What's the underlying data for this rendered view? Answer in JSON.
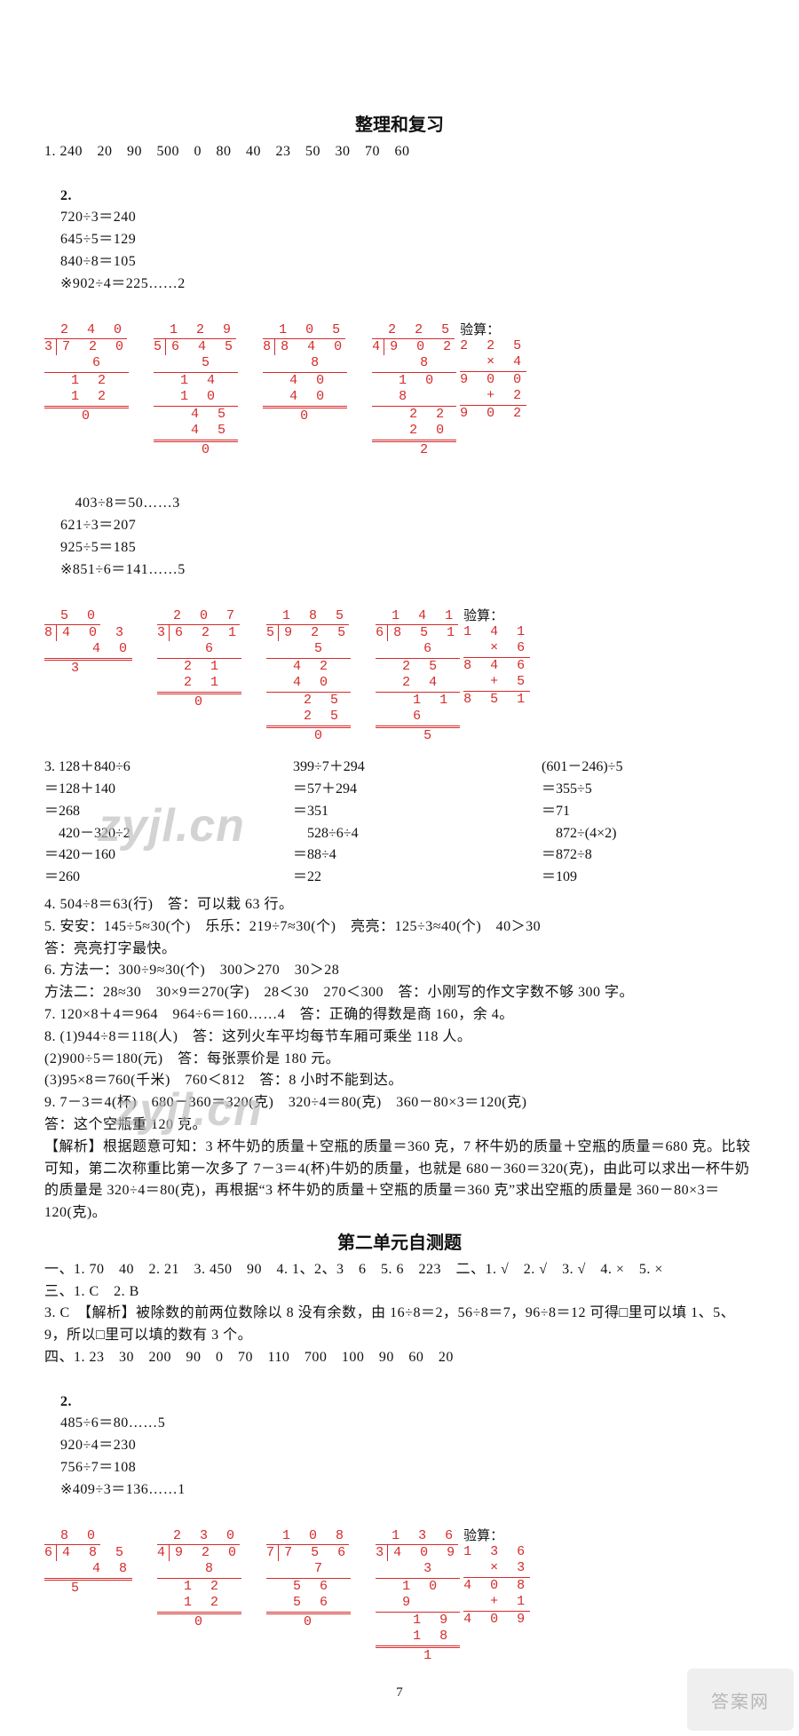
{
  "colors": {
    "text": "#111111",
    "math_red": "#d62a2a",
    "background": "#ffffff",
    "watermark": "#bdbdbd"
  },
  "section1": {
    "title": "整理和复习",
    "q1": "1. 240　20　90　500　0　80　40　23　50　30　70　60",
    "q2_header": "2.",
    "row1_eqs": [
      "720÷3＝240",
      "645÷5＝129",
      "840÷8＝105",
      "※902÷4＝225……2"
    ],
    "row1_check_label": "验算：",
    "row2_eqs": [
      "403÷8＝50……3",
      "621÷3＝207",
      "925÷5＝185",
      "※851÷6＝141……5"
    ],
    "row2_check_label": "验算：",
    "ld_row1": [
      {
        "divisor": "3",
        "dividend": "7 2 0",
        "quotient": "2 4 0",
        "steps": [
          "6",
          "1 2",
          "1 2",
          "0"
        ]
      },
      {
        "divisor": "5",
        "dividend": "6 4 5",
        "quotient": "1 2 9",
        "steps": [
          "5",
          "1 4",
          "1 0",
          "4 5",
          "4 5",
          "0"
        ]
      },
      {
        "divisor": "8",
        "dividend": "8 4 0",
        "quotient": "1 0 5",
        "steps": [
          "8",
          "4 0",
          "4 0",
          "0"
        ]
      },
      {
        "divisor": "4",
        "dividend": "9 0 2",
        "quotient": "2 2 5",
        "steps": [
          "8",
          "1 0",
          "8",
          "2 2",
          "2 0",
          "2"
        ]
      }
    ],
    "check1": {
      "a": "2 2 5",
      "b": "×     4",
      "p": "9 0 0",
      "plus": "+     2",
      "r": "9 0 2"
    },
    "ld_row2": [
      {
        "divisor": "8",
        "dividend": "4 0 3",
        "quotient": "5 0",
        "steps": [
          "4 0",
          "3"
        ]
      },
      {
        "divisor": "3",
        "dividend": "6 2 1",
        "quotient": "2 0 7",
        "steps": [
          "6",
          "2 1",
          "2 1",
          "0"
        ]
      },
      {
        "divisor": "5",
        "dividend": "9 2 5",
        "quotient": "1 8 5",
        "steps": [
          "5",
          "4 2",
          "4 0",
          "2 5",
          "2 5",
          "0"
        ]
      },
      {
        "divisor": "6",
        "dividend": "8 5 1",
        "quotient": "1 4 1",
        "steps": [
          "6",
          "2 5",
          "2 4",
          "1 1",
          "6",
          "5"
        ]
      }
    ],
    "check2": {
      "a": "1 4 1",
      "b": "×     6",
      "p": "8 4 6",
      "plus": "+     5",
      "r": "8 5 1"
    },
    "q3": {
      "label": "3.",
      "colA": [
        "128＋840÷6",
        "＝128＋140",
        "＝268",
        "　420－320÷2",
        "＝420－160",
        "＝260"
      ],
      "colB": [
        "399÷7＋294",
        "＝57＋294",
        "＝351",
        "　528÷6÷4",
        "＝88÷4",
        "＝22"
      ],
      "colC": [
        "(601－246)÷5",
        "＝355÷5",
        "＝71",
        "　872÷(4×2)",
        "＝872÷8",
        "＝109"
      ]
    },
    "q4": "4. 504÷8＝63(行)　答：可以栽 63 行。",
    "q5a": "5. 安安：145÷5≈30(个)　乐乐：219÷7≈30(个)　亮亮：125÷3≈40(个)　40＞30",
    "q5b": "答：亮亮打字最快。",
    "q6a": "6. 方法一：300÷9≈30(个)　300＞270　30＞28",
    "q6b": "方法二：28≈30　30×9＝270(字)　28＜30　270＜300　答：小刚写的作文字数不够 300 字。",
    "q7": "7. 120×8＋4＝964　964÷6＝160……4　答：正确的得数是商 160，余 4。",
    "q8a": "8. (1)944÷8＝118(人)　答：这列火车平均每节车厢可乘坐 118 人。",
    "q8b": "(2)900÷5＝180(元)　答：每张票价是 180 元。",
    "q8c": "(3)95×8＝760(千米)　760＜812　答：8 小时不能到达。",
    "q9a": "9. 7－3＝4(杯)　680－360＝320(克)　320÷4＝80(克)　360－80×3＝120(克)",
    "q9b": "答：这个空瓶重 120 克。",
    "q9exp": "【解析】根据题意可知：3 杯牛奶的质量＋空瓶的质量＝360 克，7 杯牛奶的质量＋空瓶的质量＝680 克。比较可知，第二次称重比第一次多了 7－3＝4(杯)牛奶的质量，也就是 680－360＝320(克)，由此可以求出一杯牛奶的质量是 320÷4＝80(克)，再根据“3 杯牛奶的质量＋空瓶的质量＝360 克”求出空瓶的质量是 360－80×3＝120(克)。"
  },
  "section2": {
    "title": "第二单元自测题",
    "l1": "一、1. 70　40　2. 21　3. 450　90　4. 1、2、3　6　5. 6　223　二、1. √　2. √　3. √　4. ×　5. ×",
    "l2": "三、1. C　2. B",
    "l3": "3. C　【解析】被除数的前两位数除以 8 没有余数，由 16÷8＝2，56÷8＝7，96÷8＝12 可得□里可以填 1、5、9，所以□里可以填的数有 3 个。",
    "l4": "四、1. 23　30　200　90　0　70　110　700　100　90　60　20",
    "l5_header": "2.",
    "row_eqs": [
      "485÷6＝80……5",
      "920÷4＝230",
      "756÷7＝108",
      "※409÷3＝136……1"
    ],
    "check_label": "验算：",
    "ld_row": [
      {
        "divisor": "6",
        "dividend": "4 8 5",
        "quotient": "8 0",
        "steps": [
          "4 8",
          "5"
        ]
      },
      {
        "divisor": "4",
        "dividend": "9 2 0",
        "quotient": "2 3 0",
        "steps": [
          "8",
          "1 2",
          "1 2",
          "0"
        ]
      },
      {
        "divisor": "7",
        "dividend": "7 5 6",
        "quotient": "1 0 8",
        "steps": [
          "7",
          "5 6",
          "5 6",
          "0"
        ]
      },
      {
        "divisor": "3",
        "dividend": "4 0 9",
        "quotient": "1 3 6",
        "steps": [
          "3",
          "1 0",
          "9",
          "1 9",
          "1 8",
          "1"
        ]
      }
    ],
    "check": {
      "a": "1 3 6",
      "b": "×     3",
      "p": "4 0 8",
      "plus": "+     1",
      "r": "4 0 9"
    }
  },
  "page_number": "7",
  "watermark_text": "zyjl.cn",
  "corner_text": "答案网"
}
